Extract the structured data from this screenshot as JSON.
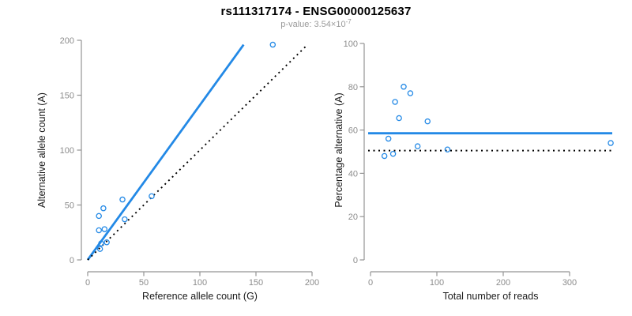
{
  "header": {
    "title": "rs111317174 - ENSG00000125637",
    "pvalue_prefix": "p-value: 3.54×10",
    "pvalue_exponent": "-7"
  },
  "colors": {
    "accent_blue": "#2389E6",
    "dotted_black": "#000000",
    "axis_gray": "#949494",
    "tick_label_gray": "#8c8c8c",
    "axis_title_black": "#1a1a1a",
    "subtitle_gray": "#9a9a9a"
  },
  "chart_data": [
    {
      "type": "scatter",
      "panel": "left",
      "xlabel": "Reference allele count (G)",
      "ylabel": "Alternative allele count (A)",
      "xlim": [
        0,
        200
      ],
      "ylim": [
        0,
        200
      ],
      "xticks": [
        0,
        50,
        100,
        150,
        200
      ],
      "yticks": [
        0,
        50,
        100,
        150,
        200
      ],
      "grid": false,
      "legend": null,
      "points": [
        [
          11,
          10
        ],
        [
          12,
          15
        ],
        [
          17,
          16
        ],
        [
          10,
          27
        ],
        [
          15,
          28
        ],
        [
          33,
          37
        ],
        [
          10,
          40
        ],
        [
          14,
          47
        ],
        [
          31,
          55
        ],
        [
          57,
          58
        ],
        [
          165,
          196
        ]
      ],
      "lines": [
        {
          "name": "fit-line",
          "style": "solid",
          "color": "accent",
          "x1": 0,
          "y1": 0,
          "x2": 139,
          "y2": 196
        },
        {
          "name": "identity-line",
          "style": "dotted",
          "color": "black",
          "x1": 0,
          "y1": 0,
          "x2": 195,
          "y2": 195
        }
      ]
    },
    {
      "type": "scatter",
      "panel": "right",
      "xlabel": "Total number of reads",
      "ylabel": "Percentage alternative (A)",
      "xlim": [
        0,
        300
      ],
      "ylim": [
        0,
        100
      ],
      "xticks": [
        0,
        100,
        200,
        300
      ],
      "yticks": [
        0,
        20,
        40,
        60,
        80,
        100
      ],
      "grid": false,
      "legend": null,
      "points": [
        [
          21,
          48
        ],
        [
          27,
          56
        ],
        [
          34,
          49
        ],
        [
          37,
          73
        ],
        [
          43,
          65.5
        ],
        [
          50,
          80
        ],
        [
          60,
          77
        ],
        [
          71,
          52.5
        ],
        [
          86,
          64
        ],
        [
          116,
          51
        ],
        [
          362,
          54
        ]
      ],
      "lines": [
        {
          "name": "mean-percentage-line",
          "style": "solid",
          "color": "accent",
          "y": 58.5
        },
        {
          "name": "fifty-percent-line",
          "style": "dotted",
          "color": "black",
          "y": 50.5
        }
      ]
    }
  ]
}
